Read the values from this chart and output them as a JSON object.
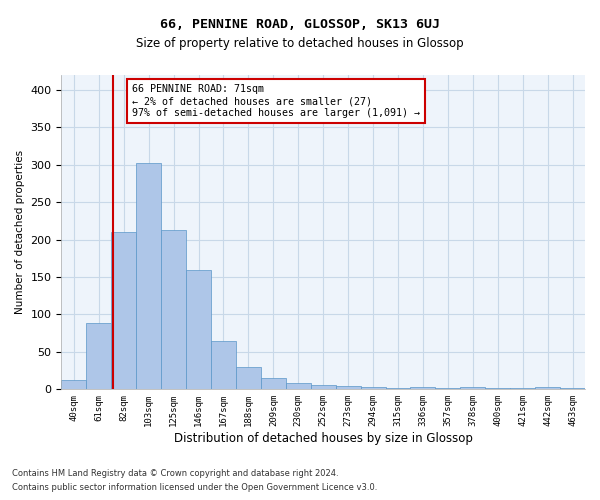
{
  "title": "66, PENNINE ROAD, GLOSSOP, SK13 6UJ",
  "subtitle": "Size of property relative to detached houses in Glossop",
  "xlabel": "Distribution of detached houses by size in Glossop",
  "ylabel": "Number of detached properties",
  "categories": [
    "40sqm",
    "61sqm",
    "82sqm",
    "103sqm",
    "125sqm",
    "146sqm",
    "167sqm",
    "188sqm",
    "209sqm",
    "230sqm",
    "252sqm",
    "273sqm",
    "294sqm",
    "315sqm",
    "336sqm",
    "357sqm",
    "378sqm",
    "400sqm",
    "421sqm",
    "442sqm",
    "463sqm"
  ],
  "values": [
    13,
    88,
    210,
    303,
    213,
    160,
    65,
    30,
    15,
    9,
    6,
    4,
    3,
    2,
    3,
    2,
    3,
    2,
    2,
    3,
    2
  ],
  "bar_color": "#aec6e8",
  "bar_edge_color": "#5a96c8",
  "bar_width": 1.0,
  "grid_color": "#c8d8e8",
  "bg_color": "#eef4fb",
  "vline_x": 1.55,
  "vline_color": "#cc0000",
  "annotation_text": "66 PENNINE ROAD: 71sqm\n← 2% of detached houses are smaller (27)\n97% of semi-detached houses are larger (1,091) →",
  "annotation_box_color": "#cc0000",
  "footnote1": "Contains HM Land Registry data © Crown copyright and database right 2024.",
  "footnote2": "Contains public sector information licensed under the Open Government Licence v3.0.",
  "ylim": [
    0,
    420
  ],
  "yticks": [
    0,
    50,
    100,
    150,
    200,
    250,
    300,
    350,
    400
  ]
}
